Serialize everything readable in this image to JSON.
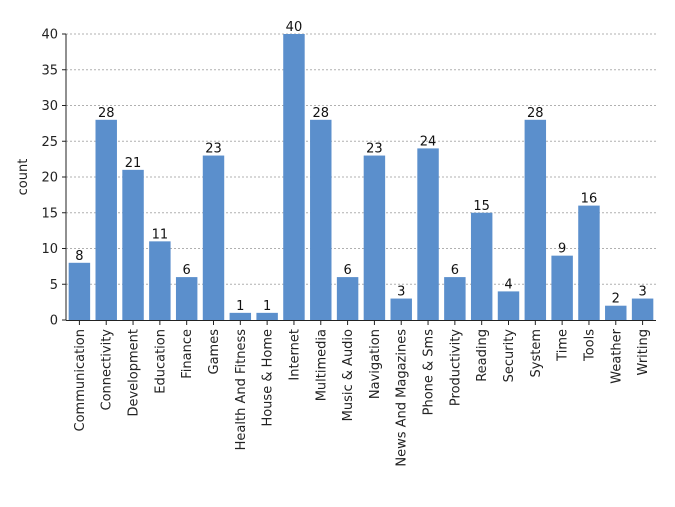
{
  "chart_data": {
    "type": "bar",
    "title": "",
    "xlabel": "",
    "ylabel": "count",
    "ylim": [
      0,
      42
    ],
    "yticks": [
      0,
      5,
      10,
      15,
      20,
      25,
      30,
      35,
      40
    ],
    "grid": "horizontal dotted",
    "bar_color": "#5b8fcc",
    "categories": [
      "Communication",
      "Connectivity",
      "Development",
      "Education",
      "Finance",
      "Games",
      "Health And Fitness",
      "House & Home",
      "Internet",
      "Multimedia",
      "Music & Audio",
      "Navigation",
      "News And Magazines",
      "Phone & Sms",
      "Productivity",
      "Reading",
      "Security",
      "System",
      "Time",
      "Tools",
      "Weather",
      "Writing"
    ],
    "values": [
      8,
      28,
      21,
      11,
      6,
      23,
      1,
      1,
      40,
      28,
      6,
      23,
      3,
      24,
      6,
      15,
      4,
      28,
      9,
      16,
      2,
      3
    ]
  }
}
